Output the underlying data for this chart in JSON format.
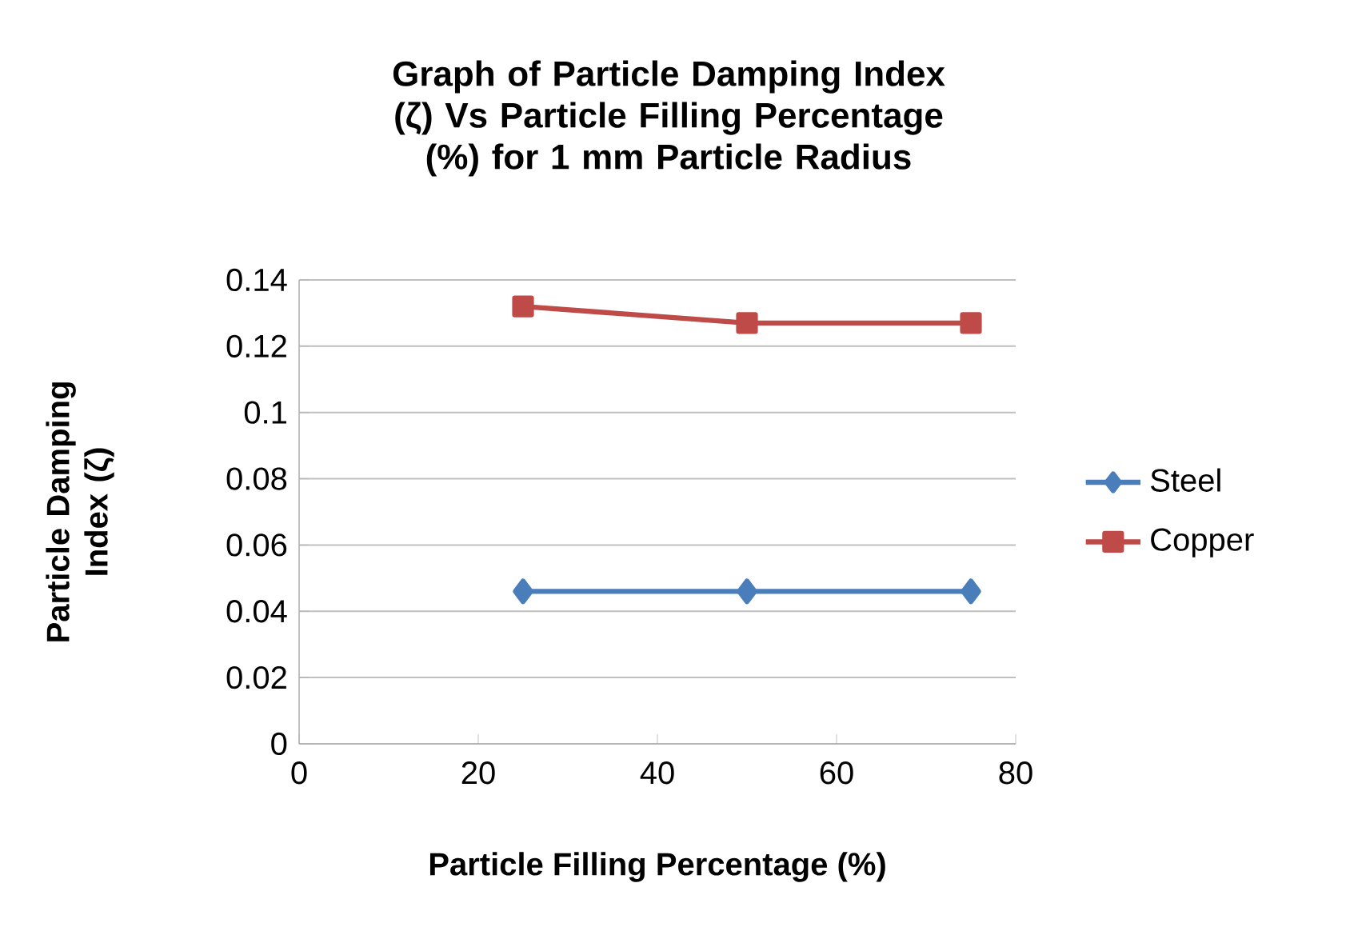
{
  "chart_data": {
    "type": "line",
    "title": "Graph of Particle Damping Index (ζ) Vs Particle Filling Percentage (%) for 1 mm Particle Radius",
    "xlabel": "Particle Filling Percentage (%)",
    "ylabel": "Particle Damping Index (ζ)",
    "x": [
      25,
      50,
      75
    ],
    "series": [
      {
        "name": "Steel",
        "color": "#4a7ebb",
        "marker": "diamond",
        "values": [
          0.046,
          0.046,
          0.046
        ]
      },
      {
        "name": "Copper",
        "color": "#be4b48",
        "marker": "square",
        "values": [
          0.132,
          0.127,
          0.127
        ]
      }
    ],
    "xlim": [
      0,
      80
    ],
    "xticks": [
      0,
      20,
      40,
      60,
      80
    ],
    "ylim": [
      0,
      0.14
    ],
    "yticks": [
      0,
      0.02,
      0.04,
      0.06,
      0.08,
      0.1,
      0.12,
      0.14
    ],
    "grid": "y",
    "legend": "right"
  }
}
